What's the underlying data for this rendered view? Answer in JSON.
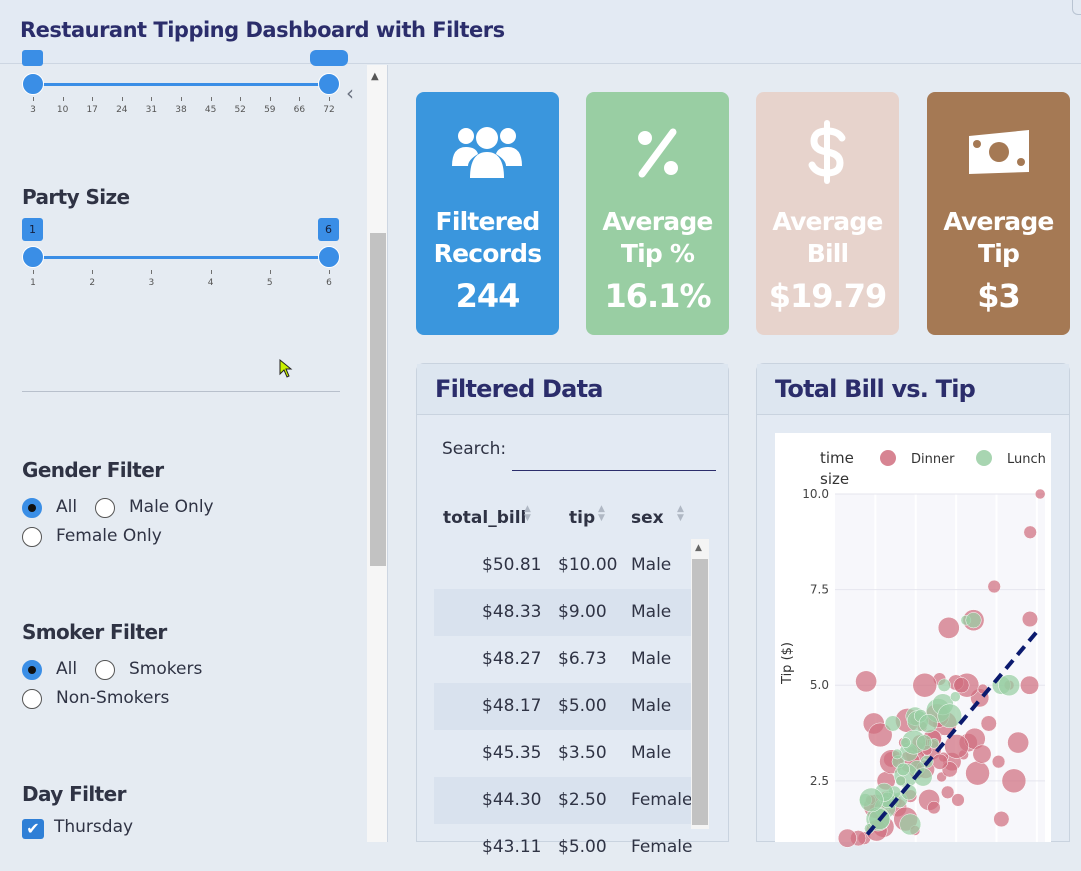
{
  "header": {
    "title": "Restaurant Tipping Dashboard with Filters"
  },
  "sidebar": {
    "bill_slider": {
      "ticks": [
        "3",
        "10",
        "17",
        "24",
        "31",
        "38",
        "45",
        "52",
        "59",
        "66",
        "72"
      ],
      "min": 3,
      "max": 72,
      "low": 3,
      "high": 72
    },
    "party_size": {
      "title": "Party Size",
      "ticks": [
        "1",
        "2",
        "3",
        "4",
        "5",
        "6"
      ],
      "low": "1",
      "high": "6"
    },
    "gender_filter": {
      "title": "Gender Filter",
      "options": [
        "All",
        "Male Only",
        "Female Only"
      ],
      "selected": "All"
    },
    "smoker_filter": {
      "title": "Smoker Filter",
      "options": [
        "All",
        "Smokers",
        "Non-Smokers"
      ],
      "selected": "All"
    },
    "day_filter": {
      "title": "Day Filter",
      "options": [
        {
          "label": "Thursday",
          "checked": true
        }
      ]
    }
  },
  "kpis": [
    {
      "label_line1": "Filtered",
      "label_line2": "Records",
      "value": "244",
      "color": "#3a96dd",
      "icon": "users-icon"
    },
    {
      "label_line1": "Average",
      "label_line2": "Tip %",
      "value": "16.1%",
      "color": "#99cea3",
      "icon": "percent-icon"
    },
    {
      "label_line1": "Average",
      "label_line2": "Bill",
      "value": "$19.79",
      "color": "#e7d3cc",
      "icon": "dollar-icon"
    },
    {
      "label_line1": "Average",
      "label_line2": "Tip",
      "value": "$3",
      "color": "#a57954",
      "icon": "money-bill-icon"
    }
  ],
  "table_card": {
    "title": "Filtered Data",
    "search_label": "Search:",
    "search_value": "",
    "columns": [
      "total_bill",
      "tip",
      "sex"
    ],
    "rows": [
      [
        "$50.81",
        "$10.00",
        "Male"
      ],
      [
        "$48.33",
        "$9.00",
        "Male"
      ],
      [
        "$48.27",
        "$6.73",
        "Male"
      ],
      [
        "$48.17",
        "$5.00",
        "Male"
      ],
      [
        "$45.35",
        "$3.50",
        "Male"
      ],
      [
        "$44.30",
        "$2.50",
        "Female"
      ],
      [
        "$43.11",
        "$5.00",
        "Female"
      ]
    ]
  },
  "chart_card": {
    "title": "Total Bill vs. Tip"
  },
  "chart_data": {
    "type": "scatter",
    "title": "",
    "xlabel": "",
    "ylabel": "Tip ($)",
    "legend_title": [
      "time",
      "size"
    ],
    "legend_placement": "top",
    "ylim": [
      0.9,
      10.0
    ],
    "y_ticks": [
      "2.5",
      "5.0",
      "7.5",
      "10.0"
    ],
    "series": [
      {
        "name": "Dinner",
        "color": "#d06f7f",
        "points": [
          [
            50.81,
            10.0
          ],
          [
            48.33,
            9.0
          ],
          [
            48.27,
            6.73
          ],
          [
            48.17,
            5.0
          ],
          [
            45.35,
            3.5
          ],
          [
            44.3,
            2.5
          ],
          [
            43.11,
            5.0
          ],
          [
            39.42,
            7.58
          ],
          [
            38.07,
            4.0
          ],
          [
            35.83,
            4.67
          ],
          [
            34.3,
            6.7
          ],
          [
            32.68,
            5.0
          ],
          [
            31.85,
            3.18
          ],
          [
            30.46,
            2.0
          ],
          [
            29.93,
            5.07
          ],
          [
            28.97,
            3.0
          ],
          [
            28.17,
            6.5
          ],
          [
            27.2,
            4.0
          ],
          [
            26.88,
            3.12
          ],
          [
            25.89,
            5.16
          ],
          [
            24.59,
            3.61
          ],
          [
            24.06,
            3.6
          ],
          [
            23.68,
            3.31
          ],
          [
            22.23,
            5.0
          ],
          [
            21.58,
            3.92
          ],
          [
            20.65,
            3.35
          ],
          [
            20.29,
            2.75
          ],
          [
            19.82,
            3.18
          ],
          [
            18.43,
            3.0
          ],
          [
            17.92,
            4.08
          ],
          [
            16.97,
            3.5
          ],
          [
            15.04,
            1.96
          ],
          [
            13.94,
            3.06
          ],
          [
            12.66,
            2.5
          ],
          [
            11.24,
            1.76
          ],
          [
            10.07,
            1.83
          ],
          [
            8.77,
            2.0
          ],
          [
            7.25,
            1.0
          ],
          [
            5.75,
            1.0
          ],
          [
            3.07,
            1.0
          ],
          [
            9.6,
            4.0
          ],
          [
            14.0,
            3.0
          ],
          [
            16.4,
            2.5
          ],
          [
            18.7,
            2.1
          ],
          [
            21.0,
            3.5
          ],
          [
            22.4,
            2.8
          ],
          [
            23.3,
            2.0
          ],
          [
            25.3,
            4.2
          ],
          [
            26.4,
            2.6
          ],
          [
            27.9,
            2.2
          ],
          [
            31.3,
            5.0
          ],
          [
            33.0,
            3.5
          ],
          [
            34.6,
            3.6
          ],
          [
            35.3,
            2.7
          ],
          [
            36.6,
            4.9
          ],
          [
            40.5,
            3.0
          ],
          [
            41.2,
            1.5
          ],
          [
            15.5,
            1.8
          ],
          [
            12.0,
            1.3
          ],
          [
            17.5,
            1.5
          ],
          [
            19.8,
            1.2
          ],
          [
            24.5,
            1.8
          ],
          [
            28.4,
            2.8
          ],
          [
            13.0,
            2.0
          ],
          [
            10.3,
            1.2
          ],
          [
            30.1,
            3.4
          ],
          [
            22.8,
            3.3
          ],
          [
            20.1,
            4.1
          ],
          [
            26.0,
            3.0
          ],
          [
            36.4,
            3.2
          ],
          [
            7.7,
            5.1
          ],
          [
            11.2,
            3.7
          ]
        ]
      },
      {
        "name": "Lunch",
        "color": "#99cea3",
        "points": [
          [
            32.4,
            6.7
          ],
          [
            27.05,
            5.0
          ],
          [
            34.3,
            6.7
          ],
          [
            41.19,
            5.0
          ],
          [
            43.11,
            5.0
          ],
          [
            25.56,
            4.34
          ],
          [
            24.52,
            3.48
          ],
          [
            22.76,
            3.0
          ],
          [
            20.27,
            2.83
          ],
          [
            19.81,
            4.19
          ],
          [
            18.64,
            1.36
          ],
          [
            17.59,
            2.64
          ],
          [
            16.27,
            2.5
          ],
          [
            15.69,
            3.0
          ],
          [
            14.31,
            4.0
          ],
          [
            13.51,
            2.0
          ],
          [
            12.43,
            1.8
          ],
          [
            10.65,
            1.5
          ],
          [
            8.51,
            1.25
          ],
          [
            7.51,
            2.0
          ],
          [
            16.0,
            2.0
          ],
          [
            18.26,
            3.25
          ],
          [
            20.49,
            4.06
          ],
          [
            19.49,
            3.51
          ],
          [
            17.47,
            3.5
          ],
          [
            14.73,
            2.2
          ],
          [
            13.0,
            2.0
          ],
          [
            12.16,
            2.2
          ],
          [
            11.0,
            1.5
          ],
          [
            9.0,
            2.0
          ],
          [
            15.4,
            3.2
          ],
          [
            21.2,
            4.2
          ],
          [
            22.1,
            3.5
          ],
          [
            23.1,
            4.0
          ],
          [
            26.7,
            4.5
          ],
          [
            28.4,
            4.2
          ],
          [
            29.8,
            4.7
          ],
          [
            16.9,
            2.8
          ],
          [
            18.3,
            2.2
          ],
          [
            21.8,
            2.6
          ]
        ]
      }
    ],
    "trendline": {
      "color": "#0b1a6e",
      "style": "dashed",
      "from": [
        8.0,
        1.1
      ],
      "to": [
        50.0,
        6.4
      ]
    }
  }
}
